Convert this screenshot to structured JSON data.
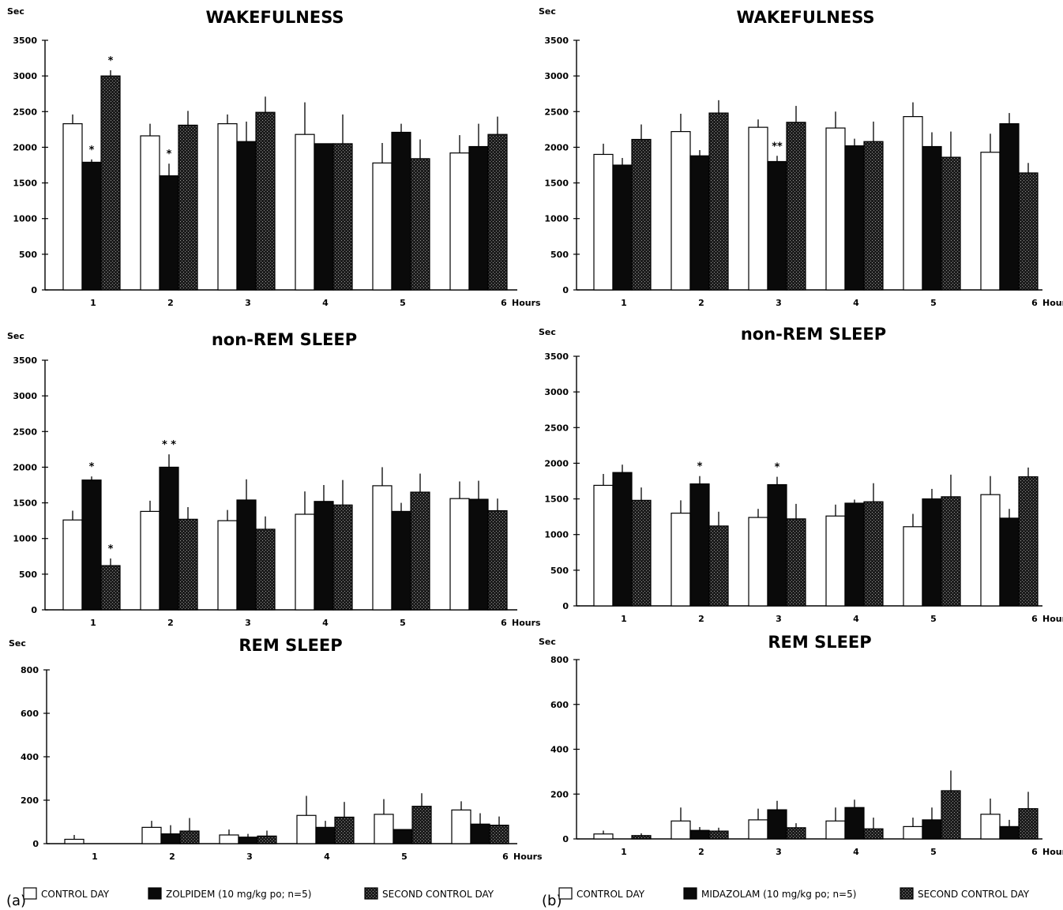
{
  "chart_data": [
    {
      "type": "bar",
      "panel": "a",
      "title": "WAKEFULNESS",
      "ylabel": "Sec",
      "xlabel": "Hours",
      "ylim": [
        0,
        3500
      ],
      "yticks": [
        0,
        500,
        1000,
        1500,
        2000,
        2500,
        3000,
        3500
      ],
      "categories": [
        "1",
        "2",
        "3",
        "4",
        "5",
        "6"
      ],
      "series": [
        {
          "name": "CONTROL DAY",
          "values": [
            2330,
            2160,
            2330,
            2180,
            1780,
            1920
          ],
          "errors": [
            130,
            170,
            130,
            450,
            280,
            250
          ]
        },
        {
          "name": "ZOLPIDEM (10 mg/kg po; n=5)",
          "values": [
            1790,
            1600,
            2080,
            2050,
            2210,
            2010
          ],
          "errors": [
            40,
            170,
            280,
            0,
            120,
            320
          ]
        },
        {
          "name": "SECOND CONTROL DAY",
          "values": [
            3000,
            2310,
            2490,
            2050,
            1840,
            2180
          ],
          "errors": [
            80,
            200,
            220,
            410,
            270,
            250
          ]
        }
      ],
      "annotations": [
        {
          "category": "1",
          "series": 1,
          "text": "*"
        },
        {
          "category": "1",
          "series": 2,
          "text": "*"
        },
        {
          "category": "2",
          "series": 1,
          "text": "*"
        }
      ]
    },
    {
      "type": "bar",
      "panel": "a",
      "title": "non-REM  SLEEP",
      "ylabel": "Sec",
      "xlabel": "Hours",
      "ylim": [
        0,
        3500
      ],
      "yticks": [
        0,
        500,
        1000,
        1500,
        2000,
        2500,
        3000,
        3500
      ],
      "categories": [
        "1",
        "2",
        "3",
        "4",
        "5",
        "6"
      ],
      "series": [
        {
          "name": "CONTROL DAY",
          "values": [
            1260,
            1380,
            1250,
            1340,
            1740,
            1560
          ],
          "errors": [
            130,
            150,
            150,
            320,
            260,
            240
          ]
        },
        {
          "name": "ZOLPIDEM (10 mg/kg po; n=5)",
          "values": [
            1820,
            2000,
            1540,
            1520,
            1380,
            1550
          ],
          "errors": [
            50,
            180,
            290,
            230,
            120,
            260
          ]
        },
        {
          "name": "SECOND CONTROL DAY",
          "values": [
            620,
            1270,
            1130,
            1470,
            1650,
            1390
          ],
          "errors": [
            100,
            170,
            180,
            350,
            260,
            170
          ]
        }
      ],
      "annotations": [
        {
          "category": "1",
          "series": 1,
          "text": "*"
        },
        {
          "category": "1",
          "series": 2,
          "text": "*"
        },
        {
          "category": "2",
          "series": 1,
          "text": "* *"
        }
      ]
    },
    {
      "type": "bar",
      "panel": "a",
      "title": "REM  SLEEP",
      "ylabel": "Sec",
      "xlabel": "Hours",
      "ylim": [
        0,
        800
      ],
      "yticks": [
        0,
        200,
        400,
        600,
        800
      ],
      "categories": [
        "1",
        "2",
        "3",
        "4",
        "5",
        "6"
      ],
      "series": [
        {
          "name": "CONTROL DAY",
          "values": [
            20,
            75,
            40,
            130,
            135,
            155
          ],
          "errors": [
            20,
            30,
            25,
            90,
            70,
            40
          ]
        },
        {
          "name": "ZOLPIDEM (10 mg/kg po; n=5)",
          "values": [
            0,
            45,
            30,
            75,
            65,
            90
          ],
          "errors": [
            0,
            40,
            15,
            30,
            0,
            50
          ]
        },
        {
          "name": "SECOND CONTROL DAY",
          "values": [
            0,
            58,
            35,
            122,
            172,
            85
          ],
          "errors": [
            0,
            60,
            25,
            70,
            60,
            40
          ]
        }
      ],
      "annotations": []
    },
    {
      "type": "bar",
      "panel": "b",
      "title": "WAKEFULNESS",
      "ylabel": "Sec",
      "xlabel": "Hours",
      "ylim": [
        0,
        3500
      ],
      "yticks": [
        0,
        500,
        1000,
        1500,
        2000,
        2500,
        3000,
        3500
      ],
      "categories": [
        "1",
        "2",
        "3",
        "4",
        "5",
        "6"
      ],
      "series": [
        {
          "name": "CONTROL DAY",
          "values": [
            1900,
            2220,
            2280,
            2270,
            2430,
            1930
          ],
          "errors": [
            150,
            250,
            110,
            230,
            200,
            260
          ]
        },
        {
          "name": "MIDAZOLAM (10 mg/kg po; n=5)",
          "values": [
            1750,
            1880,
            1800,
            2020,
            2010,
            2330
          ],
          "errors": [
            100,
            80,
            80,
            100,
            200,
            150
          ]
        },
        {
          "name": "SECOND CONTROL DAY",
          "values": [
            2110,
            2480,
            2350,
            2080,
            1860,
            1640
          ],
          "errors": [
            210,
            180,
            230,
            280,
            360,
            140
          ]
        }
      ],
      "annotations": [
        {
          "category": "3",
          "series": 1,
          "text": "**"
        }
      ]
    },
    {
      "type": "bar",
      "panel": "b",
      "title": "non-REM  SLEEP",
      "ylabel": "Sec",
      "xlabel": "Hours",
      "ylim": [
        0,
        3500
      ],
      "yticks": [
        0,
        500,
        1000,
        1500,
        2000,
        2500,
        3000,
        3500
      ],
      "categories": [
        "1",
        "2",
        "3",
        "4",
        "5",
        "6"
      ],
      "series": [
        {
          "name": "CONTROL DAY",
          "values": [
            1690,
            1300,
            1240,
            1260,
            1110,
            1560
          ],
          "errors": [
            160,
            180,
            120,
            160,
            180,
            260
          ]
        },
        {
          "name": "MIDAZOLAM (10 mg/kg po; n=5)",
          "values": [
            1870,
            1710,
            1700,
            1440,
            1500,
            1230
          ],
          "errors": [
            110,
            110,
            110,
            50,
            140,
            130
          ]
        },
        {
          "name": "SECOND CONTROL DAY",
          "values": [
            1480,
            1120,
            1220,
            1460,
            1530,
            1810
          ],
          "errors": [
            180,
            200,
            210,
            260,
            310,
            130
          ]
        }
      ],
      "annotations": [
        {
          "category": "2",
          "series": 1,
          "text": "*"
        },
        {
          "category": "3",
          "series": 1,
          "text": "*"
        }
      ]
    },
    {
      "type": "bar",
      "panel": "b",
      "title": "REM  SLEEP",
      "ylabel": "Sec",
      "xlabel": "Hours",
      "ylim": [
        0,
        800
      ],
      "yticks": [
        0,
        200,
        400,
        600,
        800
      ],
      "categories": [
        "1",
        "2",
        "3",
        "4",
        "5",
        "6"
      ],
      "series": [
        {
          "name": "CONTROL DAY",
          "values": [
            22,
            80,
            85,
            80,
            55,
            110
          ],
          "errors": [
            15,
            60,
            50,
            60,
            40,
            70
          ]
        },
        {
          "name": "MIDAZOLAM (10 mg/kg po; n=5)",
          "values": [
            0,
            38,
            130,
            140,
            85,
            55
          ],
          "errors": [
            0,
            15,
            40,
            35,
            55,
            30
          ]
        },
        {
          "name": "SECOND CONTROL DAY",
          "values": [
            15,
            35,
            50,
            45,
            215,
            135
          ],
          "errors": [
            10,
            15,
            20,
            50,
            90,
            75
          ]
        }
      ],
      "annotations": []
    }
  ],
  "legends": {
    "a": {
      "letter": "(a)",
      "items": [
        "CONTROL DAY",
        "ZOLPIDEM (10 mg/kg po; n=5)",
        "SECOND CONTROL DAY"
      ]
    },
    "b": {
      "letter": "(b)",
      "items": [
        "CONTROL DAY",
        "MIDAZOLAM (10 mg/kg po; n=5)",
        "SECOND CONTROL DAY"
      ]
    }
  },
  "colors": {
    "control": "#ffffff",
    "drug": "#0a0a0a",
    "second_control": "#222222",
    "axis": "#000000"
  }
}
